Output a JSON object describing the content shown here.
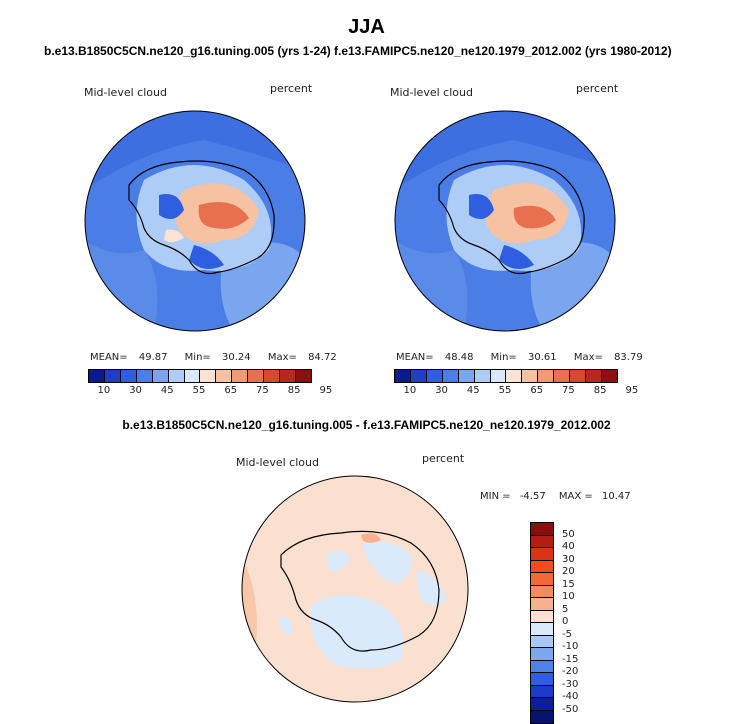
{
  "main_title": "JJA",
  "panel1": {
    "title": "b.e13.B1850C5CN.ne120_g16.tuning.005 (yrs 1-24)",
    "variable": "Mid-level cloud",
    "units": "percent",
    "mean_label": "MEAN=",
    "mean": "49.87",
    "min_label": "Min=",
    "min": "30.24",
    "max_label": "Max=",
    "max": "84.72"
  },
  "panel2": {
    "title": "f.e13.FAMIPC5.ne120_ne120.1979_2012.002 (yrs 1980-2012)",
    "variable": "Mid-level cloud",
    "units": "percent",
    "mean_label": "MEAN=",
    "mean": "48.48",
    "min_label": "Min=",
    "min": "30.61",
    "max_label": "Max=",
    "max": "83.79"
  },
  "panel3": {
    "title": "b.e13.B1850C5CN.ne120_g16.tuning.005 - f.e13.FAMIPC5.ne120_ne120.1979_2012.002",
    "variable": "Mid-level cloud",
    "units": "percent",
    "min_label": "MIN =",
    "min": "-4.57",
    "max_label": "MAX =",
    "max": "10.47"
  },
  "colorbar_ticks": [
    "10",
    "30",
    "45",
    "55",
    "65",
    "75",
    "85",
    "95"
  ],
  "colorbar_colors": [
    "#0b1a8c",
    "#1e3fc4",
    "#2f5fe0",
    "#4a7fe8",
    "#7aa6ef",
    "#aecdf6",
    "#d8e9fb",
    "#fbe3d3",
    "#f6c2a1",
    "#f09b74",
    "#e8704e",
    "#d74a2d",
    "#b8291b",
    "#8c1010"
  ],
  "diff_ticks": [
    "50",
    "40",
    "30",
    "20",
    "15",
    "10",
    "5",
    "0",
    "-5",
    "-10",
    "-15",
    "-20",
    "-30",
    "-40",
    "-50"
  ],
  "diff_colors": [
    "#8c0d0d",
    "#b51d12",
    "#d93414",
    "#ee4d1d",
    "#f26a38",
    "#f58a5c",
    "#f8b08e",
    "#fbe0cf",
    "#dbeafb",
    "#a8c8f5",
    "#7da8ee",
    "#4f83e6",
    "#2d5fe0",
    "#1a3cc8",
    "#0d1e9a",
    "#06126e"
  ],
  "colors": {
    "ocean_blue": "#4a7ee6",
    "diff_background": "#fbe0cf",
    "diff_negative": "#dbeafb"
  }
}
